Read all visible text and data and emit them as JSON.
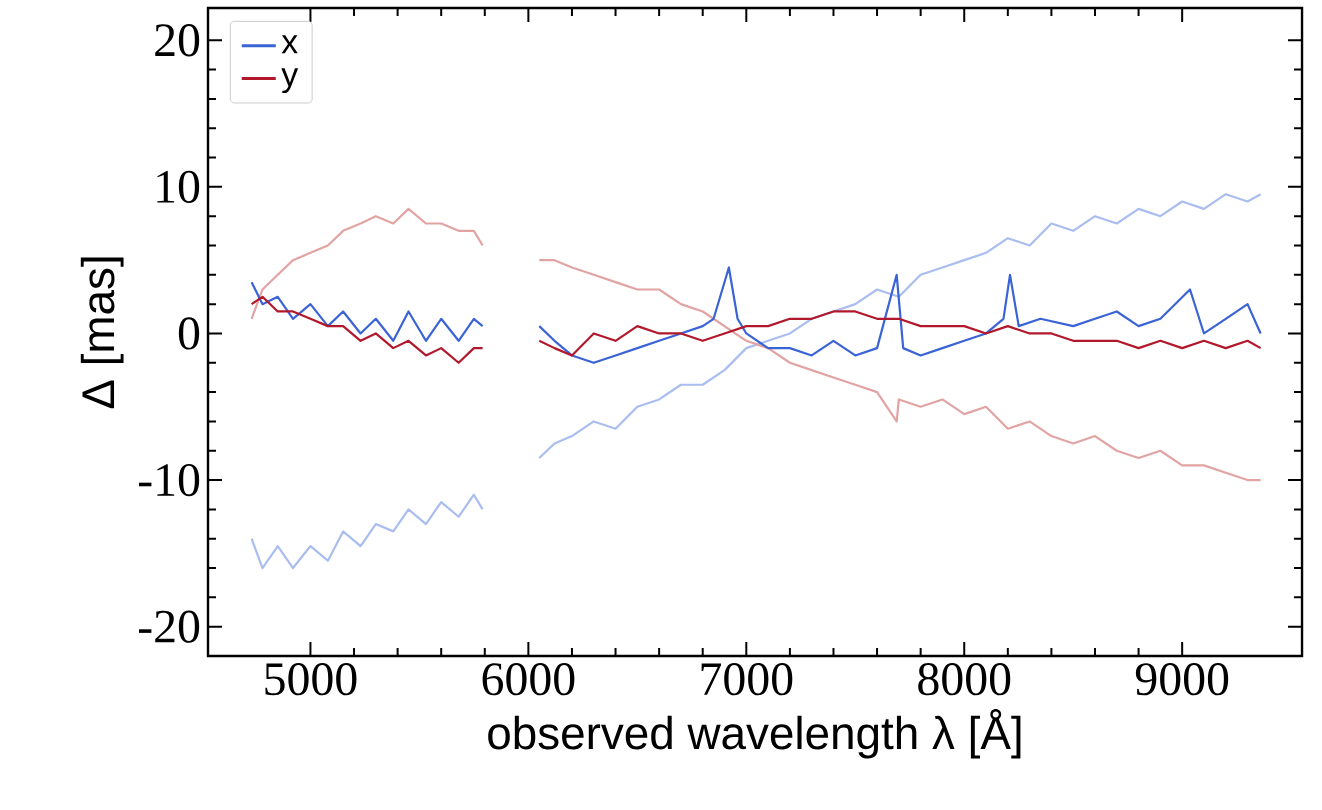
{
  "chart_data": {
    "type": "line",
    "xlabel": "observed wavelength λ [Å]",
    "ylabel": "Δ [mas]",
    "xlim": [
      4530,
      9550
    ],
    "ylim": [
      -22,
      22.2
    ],
    "xticks": [
      5000,
      6000,
      7000,
      8000,
      9000
    ],
    "yticks": [
      -20,
      -10,
      0,
      10,
      20
    ],
    "legend": "top left",
    "marker": "none",
    "series": [
      {
        "color": "#aabdf0",
        "x": [
          4730,
          4780,
          4850,
          4920,
          5000,
          5080,
          5150,
          5230,
          5300,
          5380,
          5450,
          5530,
          5600,
          5680,
          5750,
          5790,
          5900,
          6050,
          6120,
          6200,
          6300,
          6400,
          6500,
          6600,
          6700,
          6800,
          6900,
          7000,
          7100,
          7200,
          7300,
          7400,
          7500,
          7600,
          7700,
          7800,
          7900,
          8000,
          8100,
          8200,
          8300,
          8400,
          8500,
          8600,
          8700,
          8800,
          8900,
          9000,
          9100,
          9200,
          9300,
          9360
        ],
        "values": [
          -14,
          -16,
          -14.5,
          -16,
          -14.5,
          -15.5,
          -13.5,
          -14.5,
          -13,
          -13.5,
          -12,
          -13,
          -11.5,
          -12.5,
          -11,
          -12,
          null,
          -8.5,
          -7.5,
          -7,
          -6,
          -6.5,
          -5,
          -4.5,
          -3.5,
          -3.5,
          -2.5,
          -1,
          -0.5,
          0,
          1,
          1.5,
          2,
          3,
          2.5,
          4,
          4.5,
          5,
          5.5,
          6.5,
          6,
          7.5,
          7,
          8,
          7.5,
          8.5,
          8,
          9,
          8.5,
          9.5,
          9,
          9.5
        ]
      },
      {
        "color": "#e2a3a3",
        "x": [
          4730,
          4780,
          4850,
          4920,
          5000,
          5080,
          5150,
          5230,
          5300,
          5380,
          5450,
          5530,
          5600,
          5680,
          5750,
          5790,
          5900,
          6050,
          6120,
          6200,
          6300,
          6400,
          6500,
          6600,
          6700,
          6800,
          6900,
          7000,
          7100,
          7200,
          7300,
          7400,
          7500,
          7600,
          7690,
          7700,
          7800,
          7900,
          8000,
          8100,
          8200,
          8300,
          8400,
          8500,
          8600,
          8700,
          8800,
          8900,
          9000,
          9100,
          9200,
          9300,
          9360
        ],
        "values": [
          1,
          3,
          4,
          5,
          5.5,
          6,
          7,
          7.5,
          8,
          7.5,
          8.5,
          7.5,
          7.5,
          7,
          7,
          6,
          null,
          5,
          5,
          4.5,
          4,
          3.5,
          3,
          3,
          2,
          1.5,
          0.5,
          -0.5,
          -1,
          -2,
          -2.5,
          -3,
          -3.5,
          -4,
          -6,
          -4.5,
          -5,
          -4.5,
          -5.5,
          -5,
          -6.5,
          -6,
          -7,
          -7.5,
          -7,
          -8,
          -8.5,
          -8,
          -9,
          -9,
          -9.5,
          -10,
          -10
        ]
      },
      {
        "name": "x",
        "color": "#3a63d6",
        "x": [
          4730,
          4780,
          4850,
          4920,
          5000,
          5080,
          5150,
          5230,
          5300,
          5380,
          5450,
          5530,
          5600,
          5680,
          5750,
          5790,
          5900,
          6050,
          6120,
          6200,
          6300,
          6400,
          6500,
          6600,
          6700,
          6800,
          6850,
          6920,
          6960,
          7000,
          7100,
          7200,
          7300,
          7400,
          7500,
          7600,
          7690,
          7720,
          7800,
          7900,
          8000,
          8100,
          8180,
          8210,
          8250,
          8350,
          8500,
          8600,
          8700,
          8800,
          8900,
          9036,
          9100,
          9200,
          9300,
          9360
        ],
        "values": [
          3.5,
          2,
          2.5,
          1,
          2,
          0.5,
          1.5,
          0,
          1,
          -0.5,
          1.5,
          -0.5,
          1,
          -0.5,
          1,
          0.5,
          null,
          0.5,
          -0.5,
          -1.5,
          -2,
          -1.5,
          -1,
          -0.5,
          0,
          0.5,
          1,
          4.5,
          1,
          0,
          -1,
          -1,
          -1.5,
          -0.5,
          -1.5,
          -1,
          4,
          -1,
          -1.5,
          -1,
          -0.5,
          0,
          1,
          4,
          0.5,
          1,
          0.5,
          1,
          1.5,
          0.5,
          1,
          3,
          0,
          1,
          2,
          0
        ]
      },
      {
        "name": "y",
        "color": "#b2182b",
        "x": [
          4730,
          4780,
          4850,
          4920,
          5000,
          5080,
          5150,
          5230,
          5300,
          5380,
          5450,
          5530,
          5600,
          5680,
          5750,
          5790,
          5900,
          6050,
          6120,
          6200,
          6300,
          6400,
          6500,
          6600,
          6700,
          6800,
          6900,
          7000,
          7100,
          7200,
          7300,
          7400,
          7500,
          7600,
          7700,
          7800,
          7900,
          8000,
          8100,
          8200,
          8300,
          8400,
          8500,
          8600,
          8700,
          8800,
          8900,
          9000,
          9100,
          9200,
          9300,
          9360
        ],
        "values": [
          2,
          2.5,
          1.5,
          1.5,
          1,
          0.5,
          0.5,
          -0.5,
          0,
          -1,
          -0.5,
          -1.5,
          -1,
          -2,
          -1,
          -1,
          null,
          -0.5,
          -1,
          -1.5,
          0,
          -0.5,
          0.5,
          0,
          0,
          -0.5,
          0,
          0.5,
          0.5,
          1,
          1,
          1.5,
          1.5,
          1,
          1,
          0.5,
          0.5,
          0.5,
          0,
          0.5,
          0,
          0,
          -0.5,
          -0.5,
          -0.5,
          -1,
          -0.5,
          -1,
          -0.5,
          -1,
          -0.5,
          -1
        ]
      }
    ]
  }
}
